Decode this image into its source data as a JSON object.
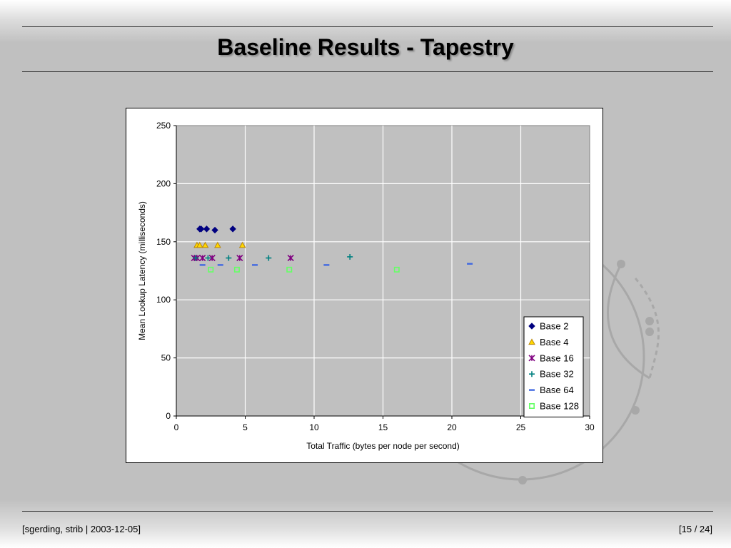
{
  "slide": {
    "title": "Baseline Results - Tapestry",
    "footer_left": "[sgerding, strib | 2003-12-05]",
    "footer_right": "[15 / 24]"
  },
  "chart_data": {
    "type": "scatter",
    "title": "",
    "xlabel": "Total Traffic (bytes per node per second)",
    "ylabel": "Mean Lookup Latency (milliseconds)",
    "xlim": [
      0,
      30
    ],
    "ylim": [
      0,
      250
    ],
    "xticks": [
      0,
      5,
      10,
      15,
      20,
      25,
      30
    ],
    "yticks": [
      0,
      50,
      100,
      150,
      200,
      250
    ],
    "grid": true,
    "plot_background": "#c0c0c0",
    "legend_position": "bottom-right",
    "series": [
      {
        "name": "Base 2",
        "marker": "diamond",
        "color": "#000080",
        "points": [
          [
            1.7,
            161
          ],
          [
            1.8,
            161
          ],
          [
            2.2,
            161
          ],
          [
            2.8,
            160
          ],
          [
            4.1,
            161
          ]
        ]
      },
      {
        "name": "Base 4",
        "marker": "triangle",
        "color": "#ffd700",
        "points": [
          [
            1.5,
            147
          ],
          [
            1.7,
            147
          ],
          [
            2.1,
            147
          ],
          [
            3.0,
            147
          ],
          [
            4.8,
            147
          ]
        ]
      },
      {
        "name": "Base 16",
        "marker": "asterisk",
        "color": "#800080",
        "points": [
          [
            1.3,
            136
          ],
          [
            1.5,
            136
          ],
          [
            1.9,
            136
          ],
          [
            2.6,
            136
          ],
          [
            4.6,
            136
          ],
          [
            8.3,
            136
          ]
        ]
      },
      {
        "name": "Base 32",
        "marker": "plus",
        "color": "#008080",
        "points": [
          [
            1.4,
            136
          ],
          [
            2.3,
            136
          ],
          [
            3.8,
            136
          ],
          [
            6.7,
            136
          ],
          [
            12.6,
            137
          ]
        ]
      },
      {
        "name": "Base 64",
        "marker": "dash",
        "color": "#4169e1",
        "points": [
          [
            1.9,
            130
          ],
          [
            3.2,
            130
          ],
          [
            5.7,
            130
          ],
          [
            10.9,
            130
          ],
          [
            21.3,
            131
          ]
        ]
      },
      {
        "name": "Base 128",
        "marker": "square",
        "color": "#66ff66",
        "points": [
          [
            2.5,
            126
          ],
          [
            4.4,
            126
          ],
          [
            8.2,
            126
          ],
          [
            16.0,
            126
          ]
        ]
      }
    ]
  }
}
